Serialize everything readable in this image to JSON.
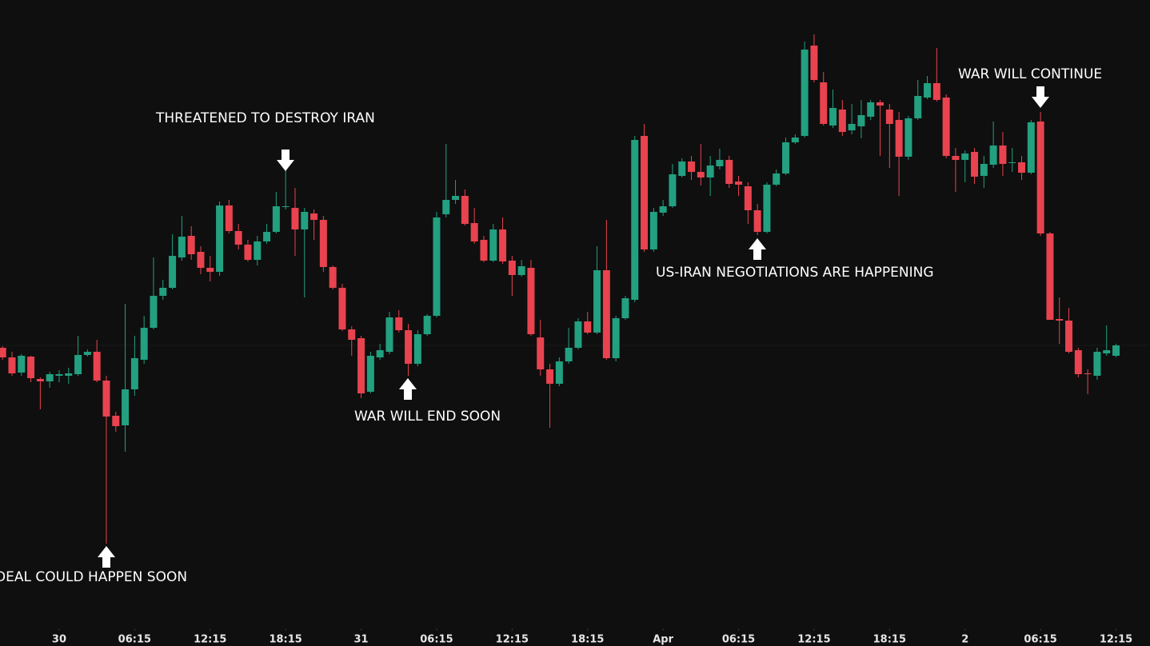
{
  "chart_data": {
    "type": "candlestick",
    "up_color": "#22a080",
    "down_color": "#e8434f",
    "ylim": [
      20,
      800
    ],
    "xlim": [
      -0.27,
      121.6
    ],
    "xticks": [
      {
        "value": 6,
        "label": "30"
      },
      {
        "value": 14,
        "label": "06:15"
      },
      {
        "value": 22,
        "label": "12:15"
      },
      {
        "value": 30,
        "label": "18:15"
      },
      {
        "value": 38,
        "label": "31"
      },
      {
        "value": 46,
        "label": "06:15"
      },
      {
        "value": 54,
        "label": "12:15"
      },
      {
        "value": 62,
        "label": "18:15"
      },
      {
        "value": 70,
        "label": "Apr"
      },
      {
        "value": 78,
        "label": "06:15"
      },
      {
        "value": 86,
        "label": "12:15"
      },
      {
        "value": 94,
        "label": "18:15"
      },
      {
        "value": 102,
        "label": "2"
      },
      {
        "value": 110,
        "label": "06:15"
      },
      {
        "value": 118,
        "label": "12:15"
      }
    ],
    "open": [
      365,
      353,
      334,
      354,
      326,
      323,
      330,
      330,
      332,
      356,
      360,
      324,
      280,
      268,
      313,
      350,
      390,
      430,
      440,
      478,
      505,
      485,
      465,
      460,
      543,
      511,
      494,
      475,
      498,
      510,
      541,
      540,
      513,
      533,
      525,
      466,
      440,
      388,
      377,
      310,
      353,
      360,
      403,
      387,
      345,
      382,
      405,
      532,
      550,
      555,
      521,
      500,
      474,
      513,
      474,
      456,
      465,
      378,
      338,
      320,
      348,
      365,
      398,
      384,
      462,
      352,
      402,
      425,
      630,
      488,
      534,
      542,
      580,
      598,
      585,
      578,
      592,
      600,
      573,
      567,
      537,
      510,
      569,
      583,
      622,
      630,
      743,
      697,
      643,
      663,
      637,
      642,
      654,
      672,
      663,
      650,
      604,
      652,
      678,
      696,
      678,
      605,
      600,
      610,
      580,
      594,
      618,
      596,
      597,
      584,
      648,
      508,
      401,
      399,
      362,
      333,
      330,
      358,
      355
    ],
    "high": [
      367,
      360,
      357,
      355,
      328,
      335,
      337,
      340,
      380,
      363,
      375,
      330,
      285,
      420,
      380,
      405,
      478,
      450,
      507,
      530,
      517,
      492,
      480,
      548,
      550,
      520,
      500,
      505,
      520,
      560,
      590,
      565,
      540,
      538,
      530,
      468,
      445,
      392,
      380,
      360,
      370,
      410,
      412,
      395,
      387,
      407,
      535,
      620,
      575,
      563,
      540,
      505,
      520,
      528,
      480,
      475,
      475,
      400,
      345,
      353,
      390,
      402,
      410,
      492,
      525,
      405,
      430,
      630,
      645,
      540,
      550,
      595,
      602,
      605,
      620,
      605,
      614,
      605,
      580,
      572,
      545,
      572,
      588,
      628,
      632,
      748,
      757,
      710,
      688,
      675,
      670,
      675,
      675,
      675,
      670,
      660,
      655,
      700,
      705,
      740,
      682,
      615,
      612,
      615,
      605,
      648,
      635,
      615,
      605,
      650,
      660,
      510,
      428,
      415,
      365,
      338,
      365,
      393,
      370
    ],
    "low": [
      350,
      330,
      330,
      322,
      288,
      315,
      322,
      320,
      330,
      354,
      322,
      120,
      260,
      235,
      305,
      345,
      388,
      425,
      438,
      474,
      475,
      457,
      448,
      455,
      508,
      488,
      473,
      468,
      495,
      508,
      538,
      480,
      428,
      500,
      460,
      438,
      386,
      355,
      302,
      308,
      350,
      357,
      384,
      330,
      342,
      380,
      403,
      528,
      545,
      518,
      495,
      472,
      472,
      470,
      430,
      454,
      380,
      330,
      265,
      317,
      345,
      363,
      382,
      382,
      350,
      348,
      400,
      422,
      485,
      485,
      530,
      540,
      578,
      575,
      568,
      555,
      588,
      565,
      555,
      520,
      506,
      508,
      567,
      581,
      620,
      628,
      697,
      643,
      640,
      630,
      632,
      627,
      650,
      605,
      590,
      555,
      600,
      650,
      676,
      673,
      602,
      560,
      572,
      570,
      565,
      590,
      580,
      585,
      575,
      582,
      505,
      400,
      370,
      358,
      328,
      307,
      325,
      355,
      353
    ],
    "close": [
      353,
      333,
      355,
      327,
      323,
      332,
      332,
      333,
      356,
      360,
      324,
      279,
      267,
      313,
      352,
      390,
      430,
      440,
      480,
      504,
      482,
      465,
      460,
      543,
      511,
      494,
      475,
      498,
      510,
      542,
      542,
      513,
      535,
      525,
      466,
      440,
      388,
      375,
      308,
      355,
      362,
      403,
      387,
      345,
      382,
      405,
      528,
      550,
      555,
      520,
      498,
      474,
      513,
      473,
      456,
      467,
      382,
      338,
      320,
      348,
      365,
      398,
      384,
      462,
      352,
      402,
      427,
      625,
      488,
      535,
      542,
      582,
      598,
      585,
      578,
      593,
      600,
      570,
      569,
      537,
      510,
      569,
      583,
      622,
      628,
      738,
      700,
      645,
      665,
      635,
      645,
      656,
      672,
      668,
      645,
      604,
      652,
      680,
      696,
      675,
      605,
      600,
      608,
      579,
      595,
      618,
      595,
      597,
      584,
      647,
      508,
      400,
      399,
      360,
      332,
      332,
      360,
      362,
      368
    ],
    "annotations": [
      "THREATENED TO DESTROY IRAN",
      "DEAL COULD HAPPEN SOON",
      "WAR WILL END SOON",
      "US-IRAN NEGOTIATIONS ARE HAPPENING",
      "WAR WILL CONTINUE"
    ]
  }
}
